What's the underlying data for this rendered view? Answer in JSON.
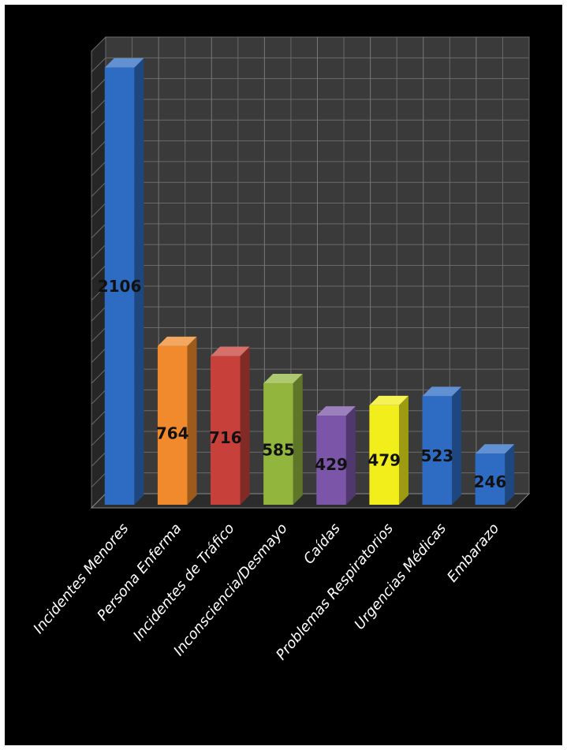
{
  "chart_data": {
    "type": "bar",
    "categories": [
      "Incidentes Menores",
      "Persona Enferma",
      "Incidentes de Tráfico",
      "Inconsciencia/Desmayo",
      "Caídas",
      "Problemas Respiratorios",
      "Urgencias Médicas",
      "Embarazo"
    ],
    "values": [
      2106,
      764,
      716,
      585,
      429,
      479,
      523,
      246
    ],
    "colors": [
      "#2e6cc4",
      "#f08a2c",
      "#c8403a",
      "#92b53e",
      "#7b55a8",
      "#f2ee1c",
      "#2e6cc4",
      "#2e6cc4"
    ],
    "ylim": [
      0,
      2200
    ],
    "grid": true,
    "background": "#000000",
    "gridline_color": "#6a6a6a"
  }
}
